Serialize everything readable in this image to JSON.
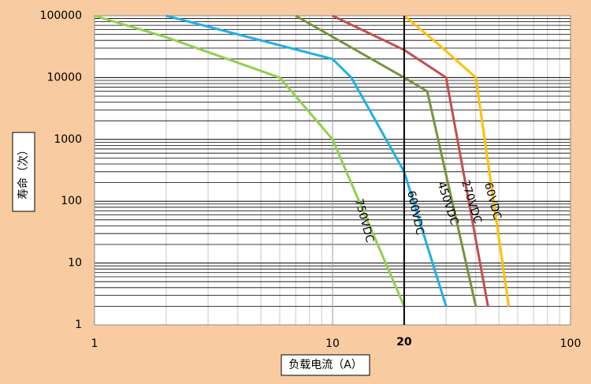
{
  "chart_data": {
    "type": "line",
    "log_x": true,
    "log_y": true,
    "grid": true,
    "x_label": "负载电流（A）",
    "y_label": "寿命（次）",
    "xlim": [
      1,
      100
    ],
    "xticks": [
      1,
      10,
      100
    ],
    "ylim": [
      1,
      100000
    ],
    "yticks": [
      1,
      10,
      100,
      1000,
      10000,
      100000
    ],
    "vline": 20,
    "series": [
      {
        "name": "750VDC",
        "color": "#92D050",
        "x": [
          1,
          2,
          6,
          10,
          20
        ],
        "values": [
          100000,
          45000,
          10000,
          1000,
          2
        ]
      },
      {
        "name": "600VDC",
        "color": "#1FB0E8",
        "x": [
          2,
          10,
          12,
          20,
          30
        ],
        "values": [
          100000,
          20000,
          10000,
          300,
          2
        ]
      },
      {
        "name": "450VDC",
        "color": "#77933C",
        "x": [
          7,
          20,
          25,
          40
        ],
        "values": [
          100000,
          10000,
          6000,
          2
        ]
      },
      {
        "name": "270VDC",
        "color": "#C0504D",
        "x": [
          10,
          20,
          30,
          45
        ],
        "values": [
          100000,
          28000,
          10000,
          2
        ]
      },
      {
        "name": "60VDC",
        "color": "#FFC000",
        "x": [
          20,
          28,
          40,
          55
        ],
        "values": [
          100000,
          34000,
          10000,
          2
        ]
      }
    ]
  }
}
